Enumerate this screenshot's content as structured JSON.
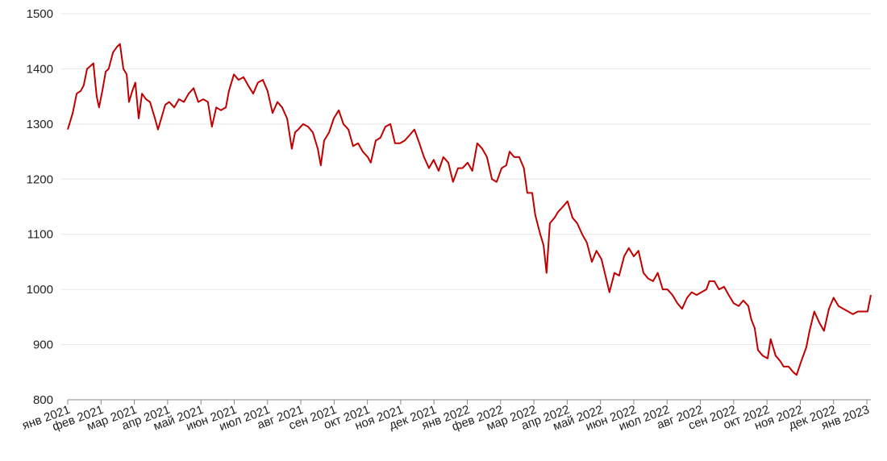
{
  "chart_data": {
    "type": "line",
    "xlim": [
      0,
      24.12
    ],
    "xticks": [
      {
        "value": 0,
        "label": "янв 2021"
      },
      {
        "value": 1,
        "label": "фев 2021"
      },
      {
        "value": 2,
        "label": "мар 2021"
      },
      {
        "value": 3,
        "label": "апр 2021"
      },
      {
        "value": 4,
        "label": "май 2021"
      },
      {
        "value": 5,
        "label": "июн 2021"
      },
      {
        "value": 6,
        "label": "июл 2021"
      },
      {
        "value": 7,
        "label": "авг 2021"
      },
      {
        "value": 8,
        "label": "сен 2021"
      },
      {
        "value": 9,
        "label": "окт 2021"
      },
      {
        "value": 10,
        "label": "ноя 2021"
      },
      {
        "value": 11,
        "label": "дек 2021"
      },
      {
        "value": 12,
        "label": "янв 2022"
      },
      {
        "value": 13,
        "label": "фев 2022"
      },
      {
        "value": 14,
        "label": "мар 2022"
      },
      {
        "value": 15,
        "label": "апр 2022"
      },
      {
        "value": 16,
        "label": "май 2022"
      },
      {
        "value": 17,
        "label": "июн 2022"
      },
      {
        "value": 18,
        "label": "июл 2022"
      },
      {
        "value": 19,
        "label": "авг 2022"
      },
      {
        "value": 20,
        "label": "сен 2022"
      },
      {
        "value": 21,
        "label": "окт 2022"
      },
      {
        "value": 22,
        "label": "ноя 2022"
      },
      {
        "value": 23,
        "label": "дек 2022"
      },
      {
        "value": 24,
        "label": "янв 2023"
      }
    ],
    "ylim": [
      800,
      1500
    ],
    "yticks": [
      800,
      900,
      1000,
      1100,
      1200,
      1300,
      1400,
      1500
    ],
    "grid": true,
    "x": [
      0,
      0.15,
      0.27,
      0.39,
      0.48,
      0.58,
      0.68,
      0.77,
      0.87,
      0.94,
      1.04,
      1.14,
      1.23,
      1.36,
      1.48,
      1.57,
      1.67,
      1.77,
      1.84,
      1.94,
      2.03,
      2.13,
      2.23,
      2.35,
      2.47,
      2.62,
      2.71,
      2.81,
      2.93,
      3.05,
      3.2,
      3.34,
      3.49,
      3.63,
      3.78,
      3.92,
      4.07,
      4.21,
      4.33,
      4.46,
      4.6,
      4.75,
      4.84,
      4.99,
      5.13,
      5.28,
      5.42,
      5.57,
      5.71,
      5.86,
      6.0,
      6.15,
      6.3,
      6.44,
      6.59,
      6.73,
      6.83,
      6.92,
      7.07,
      7.22,
      7.36,
      7.51,
      7.6,
      7.7,
      7.85,
      7.99,
      8.14,
      8.28,
      8.43,
      8.57,
      8.72,
      8.86,
      9.01,
      9.1,
      9.25,
      9.39,
      9.54,
      9.69,
      9.83,
      9.98,
      10.12,
      10.27,
      10.41,
      10.56,
      10.7,
      10.85,
      10.99,
      11.14,
      11.28,
      11.43,
      11.57,
      11.72,
      11.86,
      12.01,
      12.15,
      12.3,
      12.45,
      12.59,
      12.74,
      12.88,
      13.03,
      13.17,
      13.27,
      13.41,
      13.56,
      13.7,
      13.8,
      13.95,
      14.04,
      14.19,
      14.29,
      14.38,
      14.48,
      14.62,
      14.72,
      14.87,
      15.01,
      15.16,
      15.3,
      15.45,
      15.59,
      15.74,
      15.88,
      16.03,
      16.17,
      16.27,
      16.42,
      16.56,
      16.71,
      16.85,
      17.0,
      17.14,
      17.29,
      17.43,
      17.58,
      17.72,
      17.87,
      18.01,
      18.16,
      18.31,
      18.45,
      18.6,
      18.74,
      18.89,
      19.03,
      19.18,
      19.27,
      19.42,
      19.56,
      19.71,
      19.85,
      20.0,
      20.15,
      20.29,
      20.44,
      20.53,
      20.63,
      20.73,
      20.87,
      21.02,
      21.11,
      21.26,
      21.4,
      21.5,
      21.65,
      21.79,
      21.89,
      22.03,
      22.18,
      22.28,
      22.42,
      22.57,
      22.71,
      22.86,
      23.0,
      23.15,
      23.29,
      23.44,
      23.58,
      23.73,
      23.87,
      24.02,
      24.12
    ],
    "series": [
      {
        "color": "#c00000",
        "values": [
          1290,
          1320,
          1355,
          1360,
          1370,
          1400,
          1405,
          1410,
          1350,
          1330,
          1360,
          1395,
          1400,
          1430,
          1440,
          1445,
          1400,
          1390,
          1340,
          1360,
          1375,
          1310,
          1355,
          1345,
          1340,
          1310,
          1290,
          1310,
          1335,
          1340,
          1330,
          1345,
          1340,
          1355,
          1365,
          1340,
          1345,
          1340,
          1295,
          1330,
          1325,
          1330,
          1360,
          1390,
          1380,
          1385,
          1370,
          1355,
          1375,
          1380,
          1360,
          1320,
          1340,
          1330,
          1310,
          1255,
          1285,
          1290,
          1300,
          1295,
          1285,
          1255,
          1225,
          1270,
          1285,
          1310,
          1325,
          1300,
          1290,
          1260,
          1265,
          1250,
          1240,
          1230,
          1270,
          1275,
          1295,
          1300,
          1265,
          1265,
          1270,
          1280,
          1290,
          1265,
          1240,
          1220,
          1235,
          1215,
          1240,
          1230,
          1195,
          1220,
          1220,
          1230,
          1215,
          1265,
          1255,
          1240,
          1200,
          1195,
          1220,
          1225,
          1250,
          1240,
          1240,
          1220,
          1175,
          1175,
          1135,
          1100,
          1080,
          1030,
          1120,
          1130,
          1140,
          1150,
          1160,
          1130,
          1120,
          1100,
          1085,
          1050,
          1070,
          1055,
          1020,
          995,
          1030,
          1025,
          1060,
          1075,
          1060,
          1070,
          1030,
          1020,
          1015,
          1030,
          1000,
          1000,
          990,
          975,
          965,
          985,
          995,
          990,
          995,
          1000,
          1015,
          1015,
          1000,
          1005,
          990,
          975,
          970,
          980,
          970,
          945,
          930,
          890,
          880,
          875,
          910,
          880,
          870,
          860,
          860,
          850,
          845,
          870,
          895,
          925,
          960,
          940,
          925,
          965,
          985,
          970,
          965,
          960,
          955,
          960,
          960,
          960,
          990
        ]
      }
    ]
  }
}
